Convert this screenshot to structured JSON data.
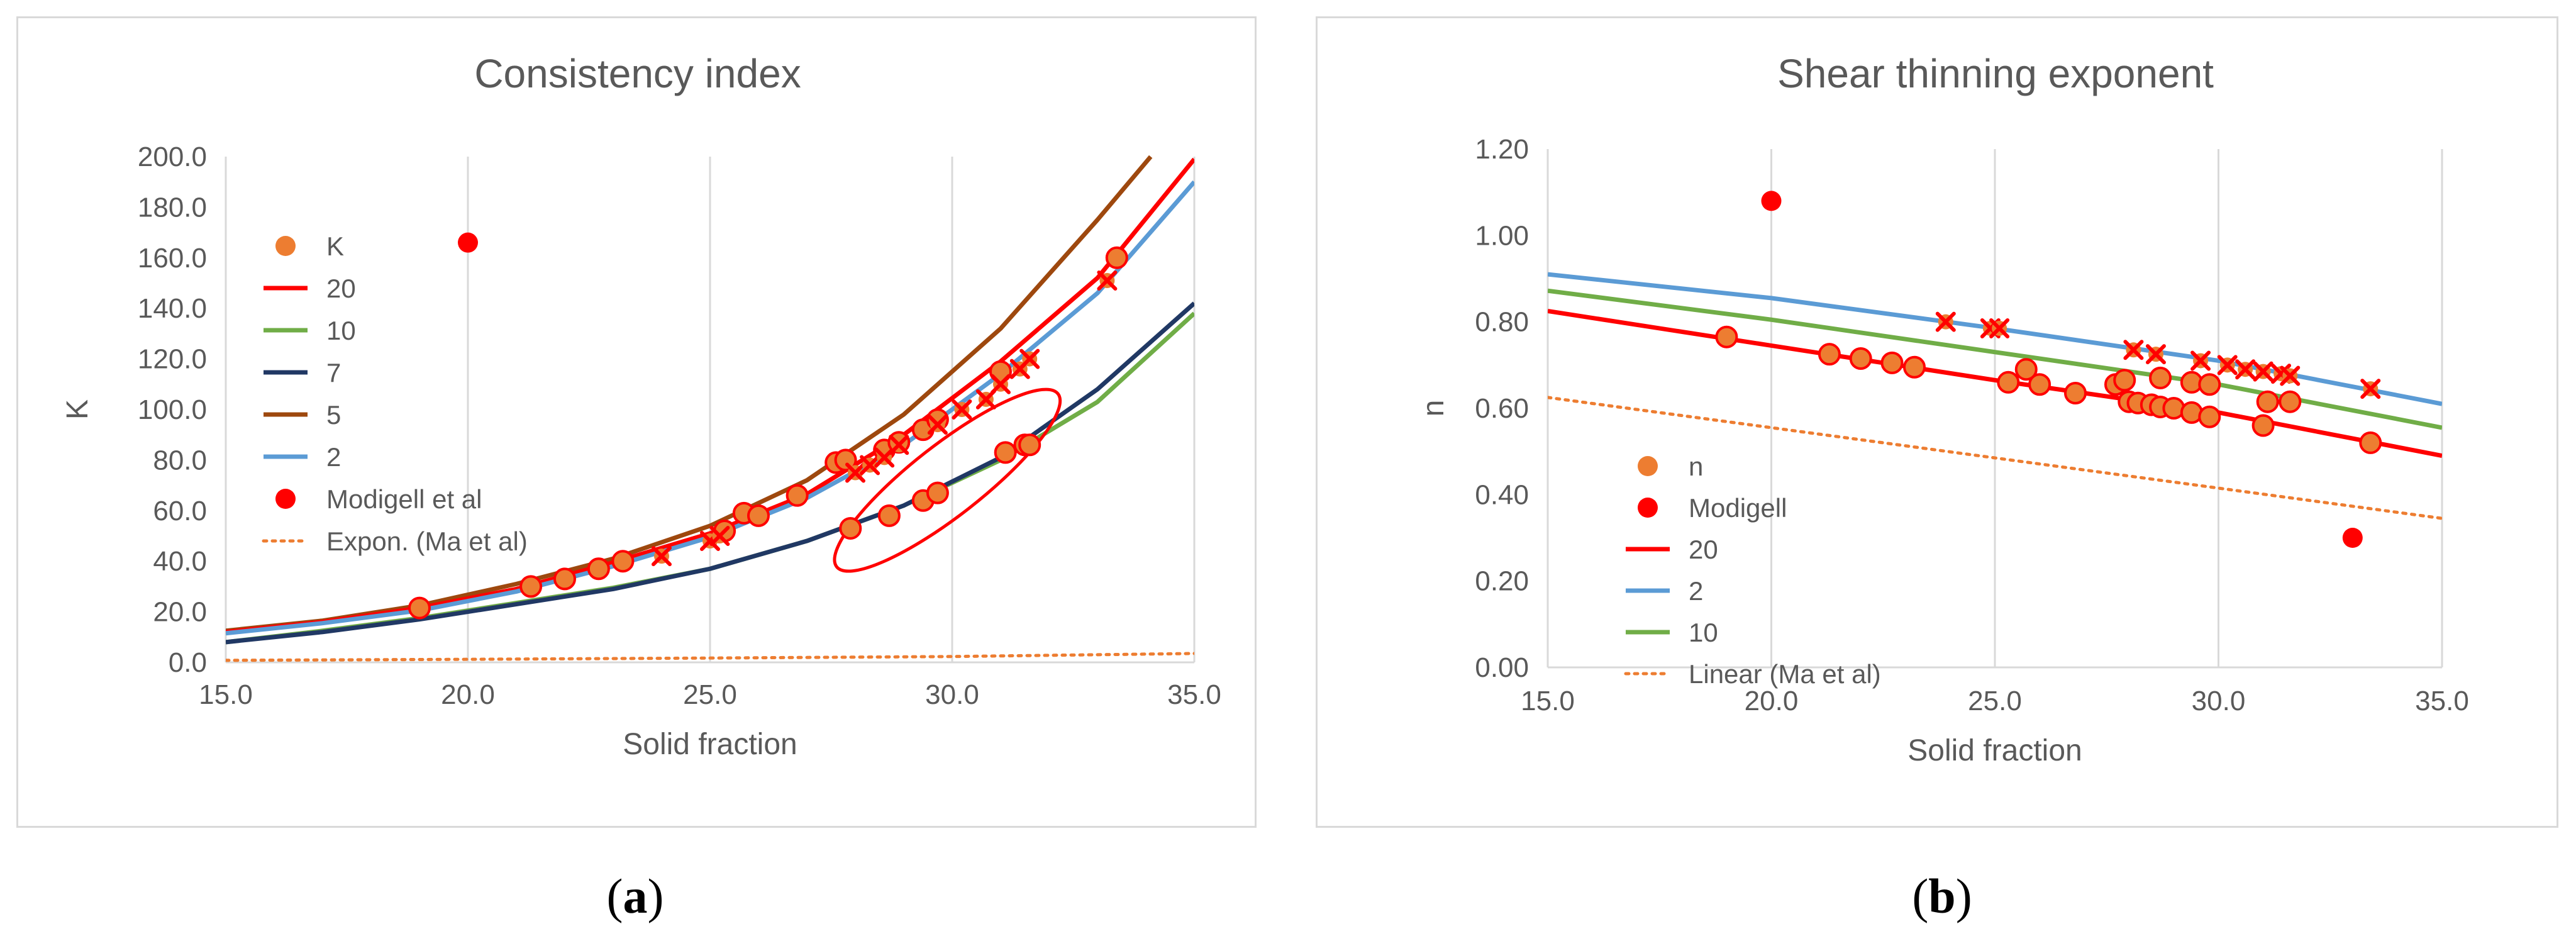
{
  "colors": {
    "red": "#ff0000",
    "green": "#70ad47",
    "navy": "#203864",
    "brown": "#9e480e",
    "blue": "#5b9bd5",
    "orange": "#ed7d31",
    "grid": "#d9d9d9",
    "text": "#595959"
  },
  "captions": {
    "a": "a",
    "b": "b"
  },
  "chart_data": [
    {
      "id": "a",
      "type": "scatter",
      "title": "Consistency index",
      "xlabel": "Solid fraction",
      "ylabel": "K",
      "xlim": [
        15,
        35
      ],
      "ylim": [
        0,
        200
      ],
      "xticks": [
        15,
        20,
        25,
        30,
        35
      ],
      "xtick_labels": [
        "15.0",
        "20.0",
        "25.0",
        "30.0",
        "35.0"
      ],
      "yticks": [
        0,
        20,
        40,
        60,
        80,
        100,
        120,
        140,
        160,
        180,
        200
      ],
      "ytick_labels": [
        "0.0",
        "20.0",
        "40.0",
        "60.0",
        "80.0",
        "100.0",
        "120.0",
        "140.0",
        "160.0",
        "180.0",
        "200.0"
      ],
      "grid": "vertical",
      "legend_position": "left",
      "legend": [
        {
          "label": "K",
          "kind": "dot",
          "color": "#ed7d31"
        },
        {
          "label": "20",
          "kind": "line",
          "color": "#ff0000"
        },
        {
          "label": "10",
          "kind": "line",
          "color": "#70ad47"
        },
        {
          "label": "7",
          "kind": "line",
          "color": "#203864"
        },
        {
          "label": "5",
          "kind": "line",
          "color": "#9e480e"
        },
        {
          "label": "2",
          "kind": "line",
          "color": "#5b9bd5"
        },
        {
          "label": "Modigell et al",
          "kind": "dot",
          "color": "#ff0000"
        },
        {
          "label": "Expon. (Ma et al)",
          "kind": "dotted",
          "color": "#ed7d31"
        }
      ],
      "lines": [
        {
          "name": "5",
          "color": "#9e480e",
          "dash": false,
          "x": [
            15,
            17,
            19,
            21,
            23,
            25,
            27,
            29,
            31,
            33,
            34.1
          ],
          "y": [
            12.5,
            16.5,
            22.5,
            31,
            41,
            54,
            72,
            98,
            132,
            175,
            200
          ]
        },
        {
          "name": "20",
          "color": "#ff0000",
          "dash": false,
          "x": [
            15,
            17,
            19,
            21,
            23,
            25,
            27,
            29,
            31,
            33,
            35
          ],
          "y": [
            12,
            16,
            21.5,
            29,
            39.5,
            51,
            66.5,
            90,
            119,
            152,
            199
          ]
        },
        {
          "name": "2",
          "color": "#5b9bd5",
          "dash": false,
          "x": [
            15,
            17,
            19,
            21,
            23,
            25,
            27,
            29,
            31,
            33,
            35
          ],
          "y": [
            11.5,
            15.5,
            20.5,
            28,
            38,
            49.5,
            65,
            86,
            114,
            146,
            190
          ]
        },
        {
          "name": "10",
          "color": "#70ad47",
          "dash": false,
          "x": [
            15,
            17,
            19,
            21,
            23,
            25,
            27,
            29,
            31,
            33,
            35
          ],
          "y": [
            8,
            12.5,
            17.5,
            23.5,
            29.5,
            37,
            48,
            62,
            80,
            103,
            138
          ]
        },
        {
          "name": "7",
          "color": "#203864",
          "dash": false,
          "x": [
            15,
            17,
            19,
            21,
            23,
            25,
            27,
            29,
            31,
            33,
            35
          ],
          "y": [
            8,
            12,
            17,
            23,
            29,
            37,
            48,
            62,
            81,
            108,
            142
          ]
        },
        {
          "name": "Expon. (Ma et al)",
          "color": "#ed7d31",
          "dash": true,
          "x": [
            15,
            20,
            25,
            30,
            35
          ],
          "y": [
            0.8,
            1.2,
            1.7,
            2.3,
            3.5
          ]
        }
      ],
      "points": [
        {
          "name": "K",
          "color": "#ed7d31",
          "outline": "#ff0000",
          "marker": "circle",
          "x": [
            19,
            21.3,
            22,
            22.7,
            23.2,
            25.3,
            25.7,
            26,
            26.8,
            27.6,
            27.8,
            28.6,
            28.9,
            29.4,
            29.7,
            31,
            31.5,
            33.4,
            27.9,
            28.7,
            29.4,
            29.7,
            31.1,
            31.6
          ],
          "y": [
            21.5,
            30,
            33,
            37,
            40,
            52,
            59,
            58,
            66,
            79,
            80,
            84,
            87,
            92,
            96,
            115,
            86,
            160,
            53,
            58,
            64,
            67,
            83,
            86
          ]
        },
        {
          "name": "K (x)",
          "color": "#ed7d31",
          "outline": "#ff0000",
          "marker": "x",
          "x": [
            24,
            25,
            25.2,
            28,
            28.3,
            28.6,
            28.9,
            29.7,
            30.2,
            30.7,
            31,
            31.4,
            31.6,
            33.2
          ],
          "y": [
            42,
            48,
            50,
            75,
            78,
            81,
            86,
            94,
            100,
            104,
            110,
            116,
            120,
            151
          ]
        },
        {
          "name": "Modigell et al",
          "color": "#ff0000",
          "marker": "circle",
          "x": [
            20
          ],
          "y": [
            166
          ]
        }
      ],
      "annotation": {
        "type": "ellipse",
        "color": "#ff0000",
        "cx": 29.9,
        "cy": 72,
        "rx_data": 2.9,
        "ry_data": 14,
        "angle_deg": -38
      }
    },
    {
      "id": "b",
      "type": "scatter",
      "title": "Shear thinning exponent",
      "xlabel": "Solid fraction",
      "ylabel": "n",
      "xlim": [
        15,
        35
      ],
      "ylim": [
        0,
        1.2
      ],
      "xticks": [
        15,
        20,
        25,
        30,
        35
      ],
      "xtick_labels": [
        "15.0",
        "20.0",
        "25.0",
        "30.0",
        "35.0"
      ],
      "yticks": [
        0,
        0.2,
        0.4,
        0.6,
        0.8,
        1.0,
        1.2
      ],
      "ytick_labels": [
        "0.00",
        "0.20",
        "0.40",
        "0.60",
        "0.80",
        "1.00",
        "1.20"
      ],
      "grid": "vertical",
      "legend_position": "bottom-left",
      "legend": [
        {
          "label": "n",
          "kind": "dot",
          "color": "#ed7d31"
        },
        {
          "label": "Modigell",
          "kind": "dot",
          "color": "#ff0000"
        },
        {
          "label": "20",
          "kind": "line",
          "color": "#ff0000"
        },
        {
          "label": "2",
          "kind": "line",
          "color": "#5b9bd5"
        },
        {
          "label": "10",
          "kind": "line",
          "color": "#70ad47"
        },
        {
          "label": "Linear (Ma et al)",
          "kind": "dotted",
          "color": "#ed7d31"
        }
      ],
      "lines": [
        {
          "name": "2",
          "color": "#5b9bd5",
          "dash": false,
          "x": [
            15,
            20,
            25,
            30,
            35
          ],
          "y": [
            0.91,
            0.855,
            0.785,
            0.71,
            0.61
          ]
        },
        {
          "name": "10",
          "color": "#70ad47",
          "dash": false,
          "x": [
            15,
            20,
            25,
            30,
            35
          ],
          "y": [
            0.872,
            0.805,
            0.73,
            0.655,
            0.555
          ]
        },
        {
          "name": "20",
          "color": "#ff0000",
          "dash": false,
          "x": [
            15,
            20,
            25,
            30,
            35
          ],
          "y": [
            0.825,
            0.745,
            0.665,
            0.59,
            0.49
          ]
        },
        {
          "name": "Linear (Ma et al)",
          "color": "#ed7d31",
          "dash": true,
          "x": [
            15,
            35
          ],
          "y": [
            0.625,
            0.345
          ]
        }
      ],
      "points": [
        {
          "name": "n",
          "color": "#ed7d31",
          "outline": "#ff0000",
          "marker": "circle",
          "x": [
            19,
            21.3,
            22,
            22.7,
            23.2,
            25.3,
            26,
            26.8,
            28,
            28.2,
            28.5,
            28.7,
            29,
            29.4,
            29.8,
            31,
            33.4,
            25.7,
            27.7,
            27.9,
            28.7,
            29.4,
            29.8,
            31.1,
            31.6
          ],
          "y": [
            0.765,
            0.725,
            0.715,
            0.705,
            0.695,
            0.66,
            0.655,
            0.635,
            0.615,
            0.612,
            0.608,
            0.603,
            0.6,
            0.59,
            0.58,
            0.56,
            0.52,
            0.69,
            0.655,
            0.665,
            0.67,
            0.66,
            0.655,
            0.615,
            0.615
          ]
        },
        {
          "name": "n (x)",
          "color": "#ed7d31",
          "outline": "#ff0000",
          "marker": "x",
          "x": [
            23.9,
            24.9,
            25.1,
            28.1,
            28.6,
            29.6,
            30.2,
            30.6,
            31,
            31.4,
            31.6,
            33.4
          ],
          "y": [
            0.8,
            0.785,
            0.785,
            0.735,
            0.725,
            0.71,
            0.7,
            0.69,
            0.685,
            0.68,
            0.675,
            0.645
          ]
        },
        {
          "name": "Modigell",
          "color": "#ff0000",
          "marker": "circle",
          "x": [
            20,
            33
          ],
          "y": [
            1.08,
            0.3
          ]
        }
      ]
    }
  ]
}
